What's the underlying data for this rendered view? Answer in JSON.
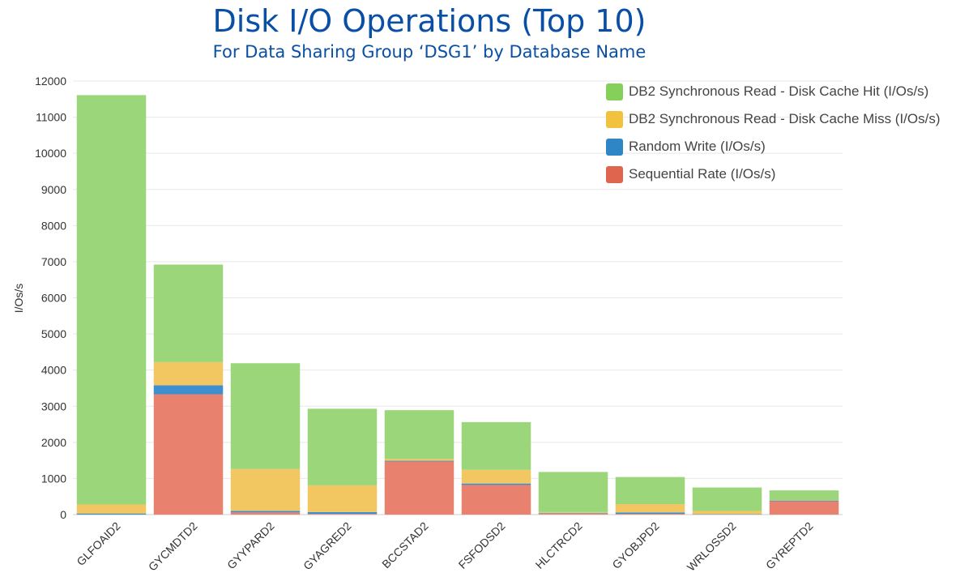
{
  "chart_data": {
    "type": "bar",
    "stacked": true,
    "title": "Disk I/O Operations (Top 10)",
    "subtitle": "For Data Sharing Group ‘DSG1’ by Database Name",
    "ylabel": "I/Os/s",
    "xlabel": "",
    "ylim": [
      0,
      12000
    ],
    "yticks": [
      0,
      1000,
      2000,
      3000,
      4000,
      5000,
      6000,
      7000,
      8000,
      9000,
      10000,
      11000,
      12000
    ],
    "grid": true,
    "legend_position": "top-right",
    "categories": [
      "GLFOAID2",
      "GYCMDTD2",
      "GYYPARD2",
      "GYAGRED2",
      "BCCSTAD2",
      "FSFODSD2",
      "HLCTRCD2",
      "GYOBJPD2",
      "WRLOSSD2",
      "GYREPTD2"
    ],
    "series": [
      {
        "name": "Sequential Rate (I/Os/s)",
        "color": "#e8826f",
        "values": [
          0,
          3330,
          60,
          20,
          1470,
          820,
          20,
          20,
          0,
          370
        ]
      },
      {
        "name": "Random Write (I/Os/s)",
        "color": "#3f8fd0",
        "values": [
          30,
          250,
          40,
          50,
          20,
          40,
          20,
          40,
          10,
          20
        ]
      },
      {
        "name": "DB2 Synchronous Read - Disk Cache Miss (I/Os/s)",
        "color": "#f2c660",
        "values": [
          250,
          640,
          1160,
          740,
          50,
          380,
          30,
          230,
          90,
          10
        ]
      },
      {
        "name": "DB2 Synchronous Read - Disk Cache Hit (I/Os/s)",
        "color": "#9bd67a",
        "values": [
          11330,
          2700,
          2930,
          2120,
          1350,
          1320,
          1110,
          750,
          650,
          270
        ]
      }
    ],
    "legend_order": [
      3,
      2,
      1,
      0
    ],
    "legend_colors": [
      "#85cf5b",
      "#f2c13d",
      "#2f86c7",
      "#e0654f"
    ]
  }
}
